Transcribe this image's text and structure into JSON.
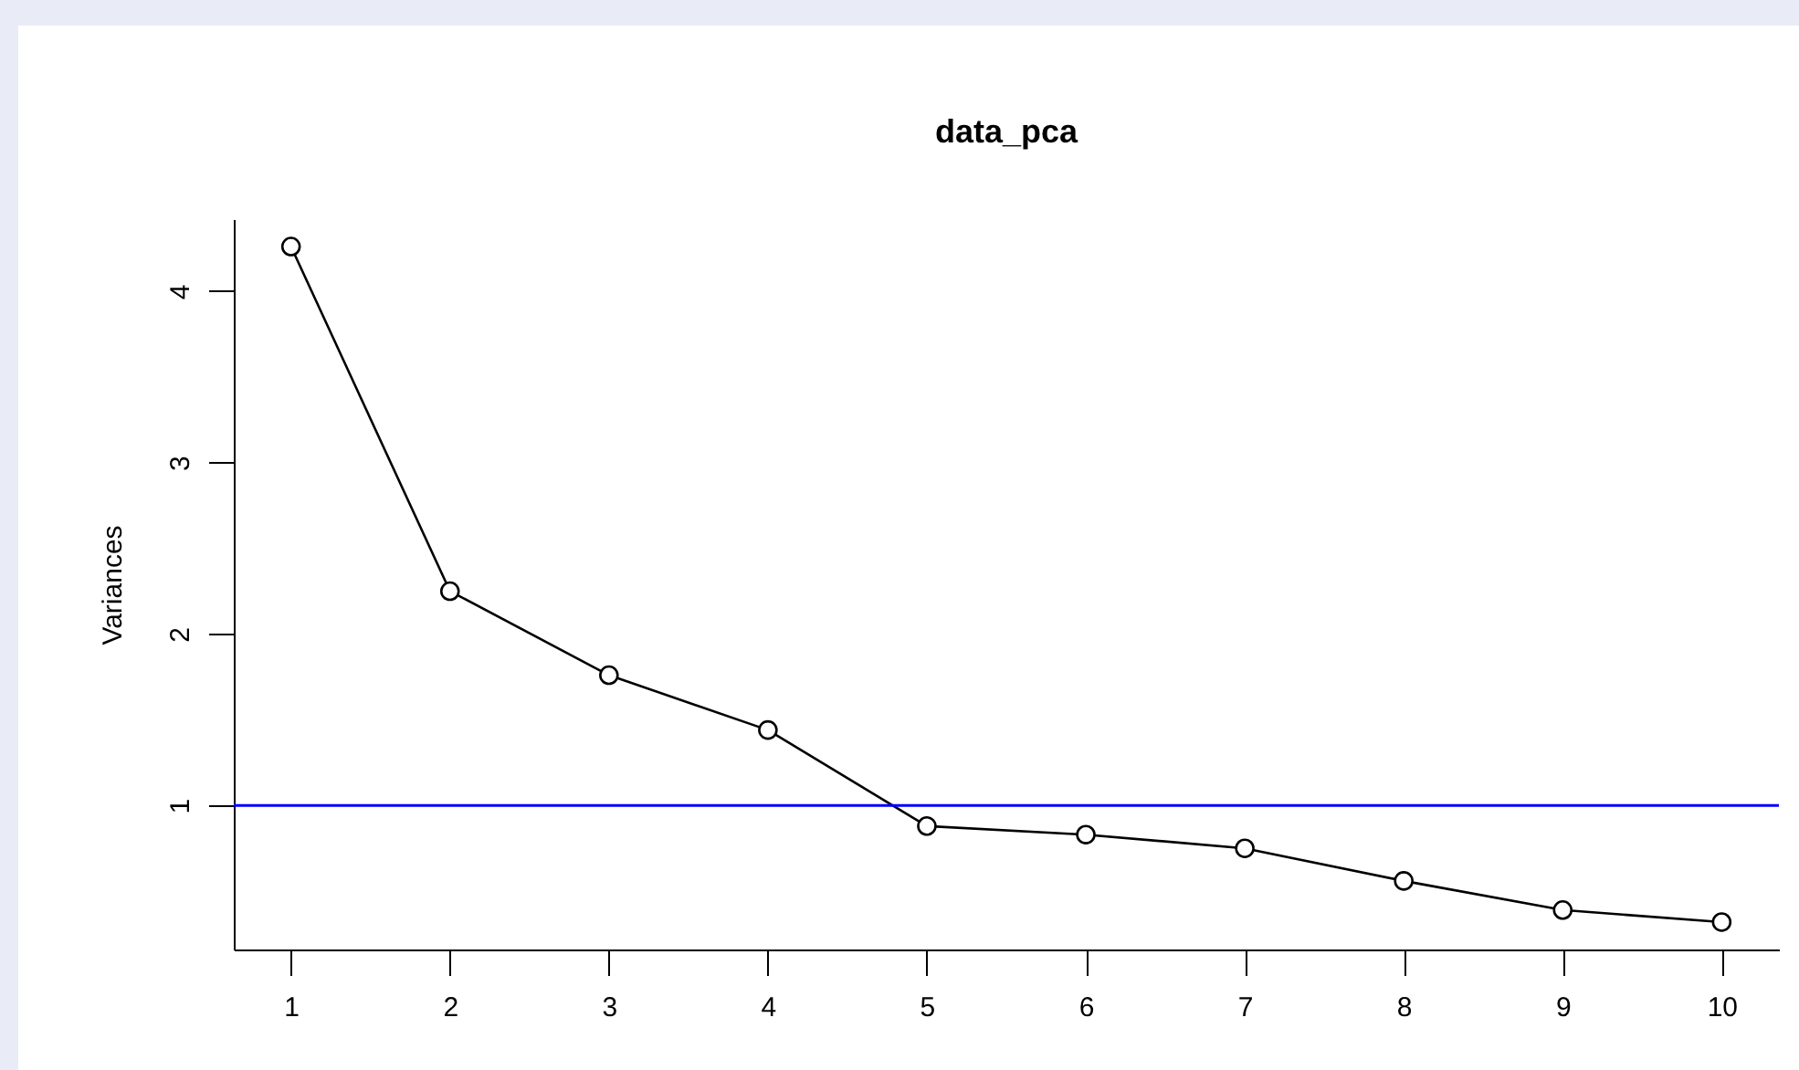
{
  "chart_data": {
    "type": "line",
    "title": "data_pca",
    "ylabel": "Variances",
    "x": [
      1,
      2,
      3,
      4,
      5,
      6,
      7,
      8,
      9,
      10
    ],
    "series": [
      {
        "color": "#000000",
        "values": [
          4.26,
          2.25,
          1.76,
          1.44,
          0.88,
          0.83,
          0.75,
          0.56,
          0.39,
          0.32
        ]
      }
    ],
    "xlim": [
      0.64,
      10.36
    ],
    "xticks": [
      1,
      2,
      3,
      4,
      5,
      6,
      7,
      8,
      9,
      10
    ],
    "ylim": [
      0.16,
      4.42
    ],
    "yticks": [
      1,
      2,
      3,
      4
    ],
    "ref_lines": [
      {
        "axis": "y",
        "value": 1,
        "color": "#0000ff"
      }
    ],
    "grid": false,
    "marker": "circle",
    "line_style": "solid"
  }
}
